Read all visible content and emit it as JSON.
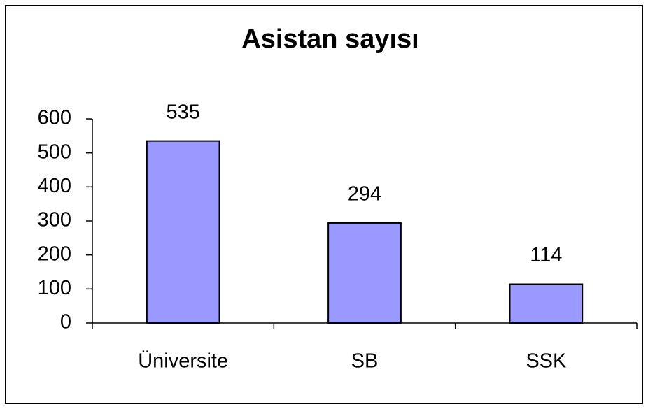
{
  "chart_data": {
    "type": "bar",
    "title": "Asistan sayısı",
    "categories": [
      "Üniversite",
      "SB",
      "SSK"
    ],
    "values": [
      535,
      294,
      114
    ],
    "color": "#9999ff",
    "ylim": [
      0,
      600
    ],
    "yticks": [
      0,
      100,
      200,
      300,
      400,
      500,
      600
    ],
    "grid": false
  }
}
